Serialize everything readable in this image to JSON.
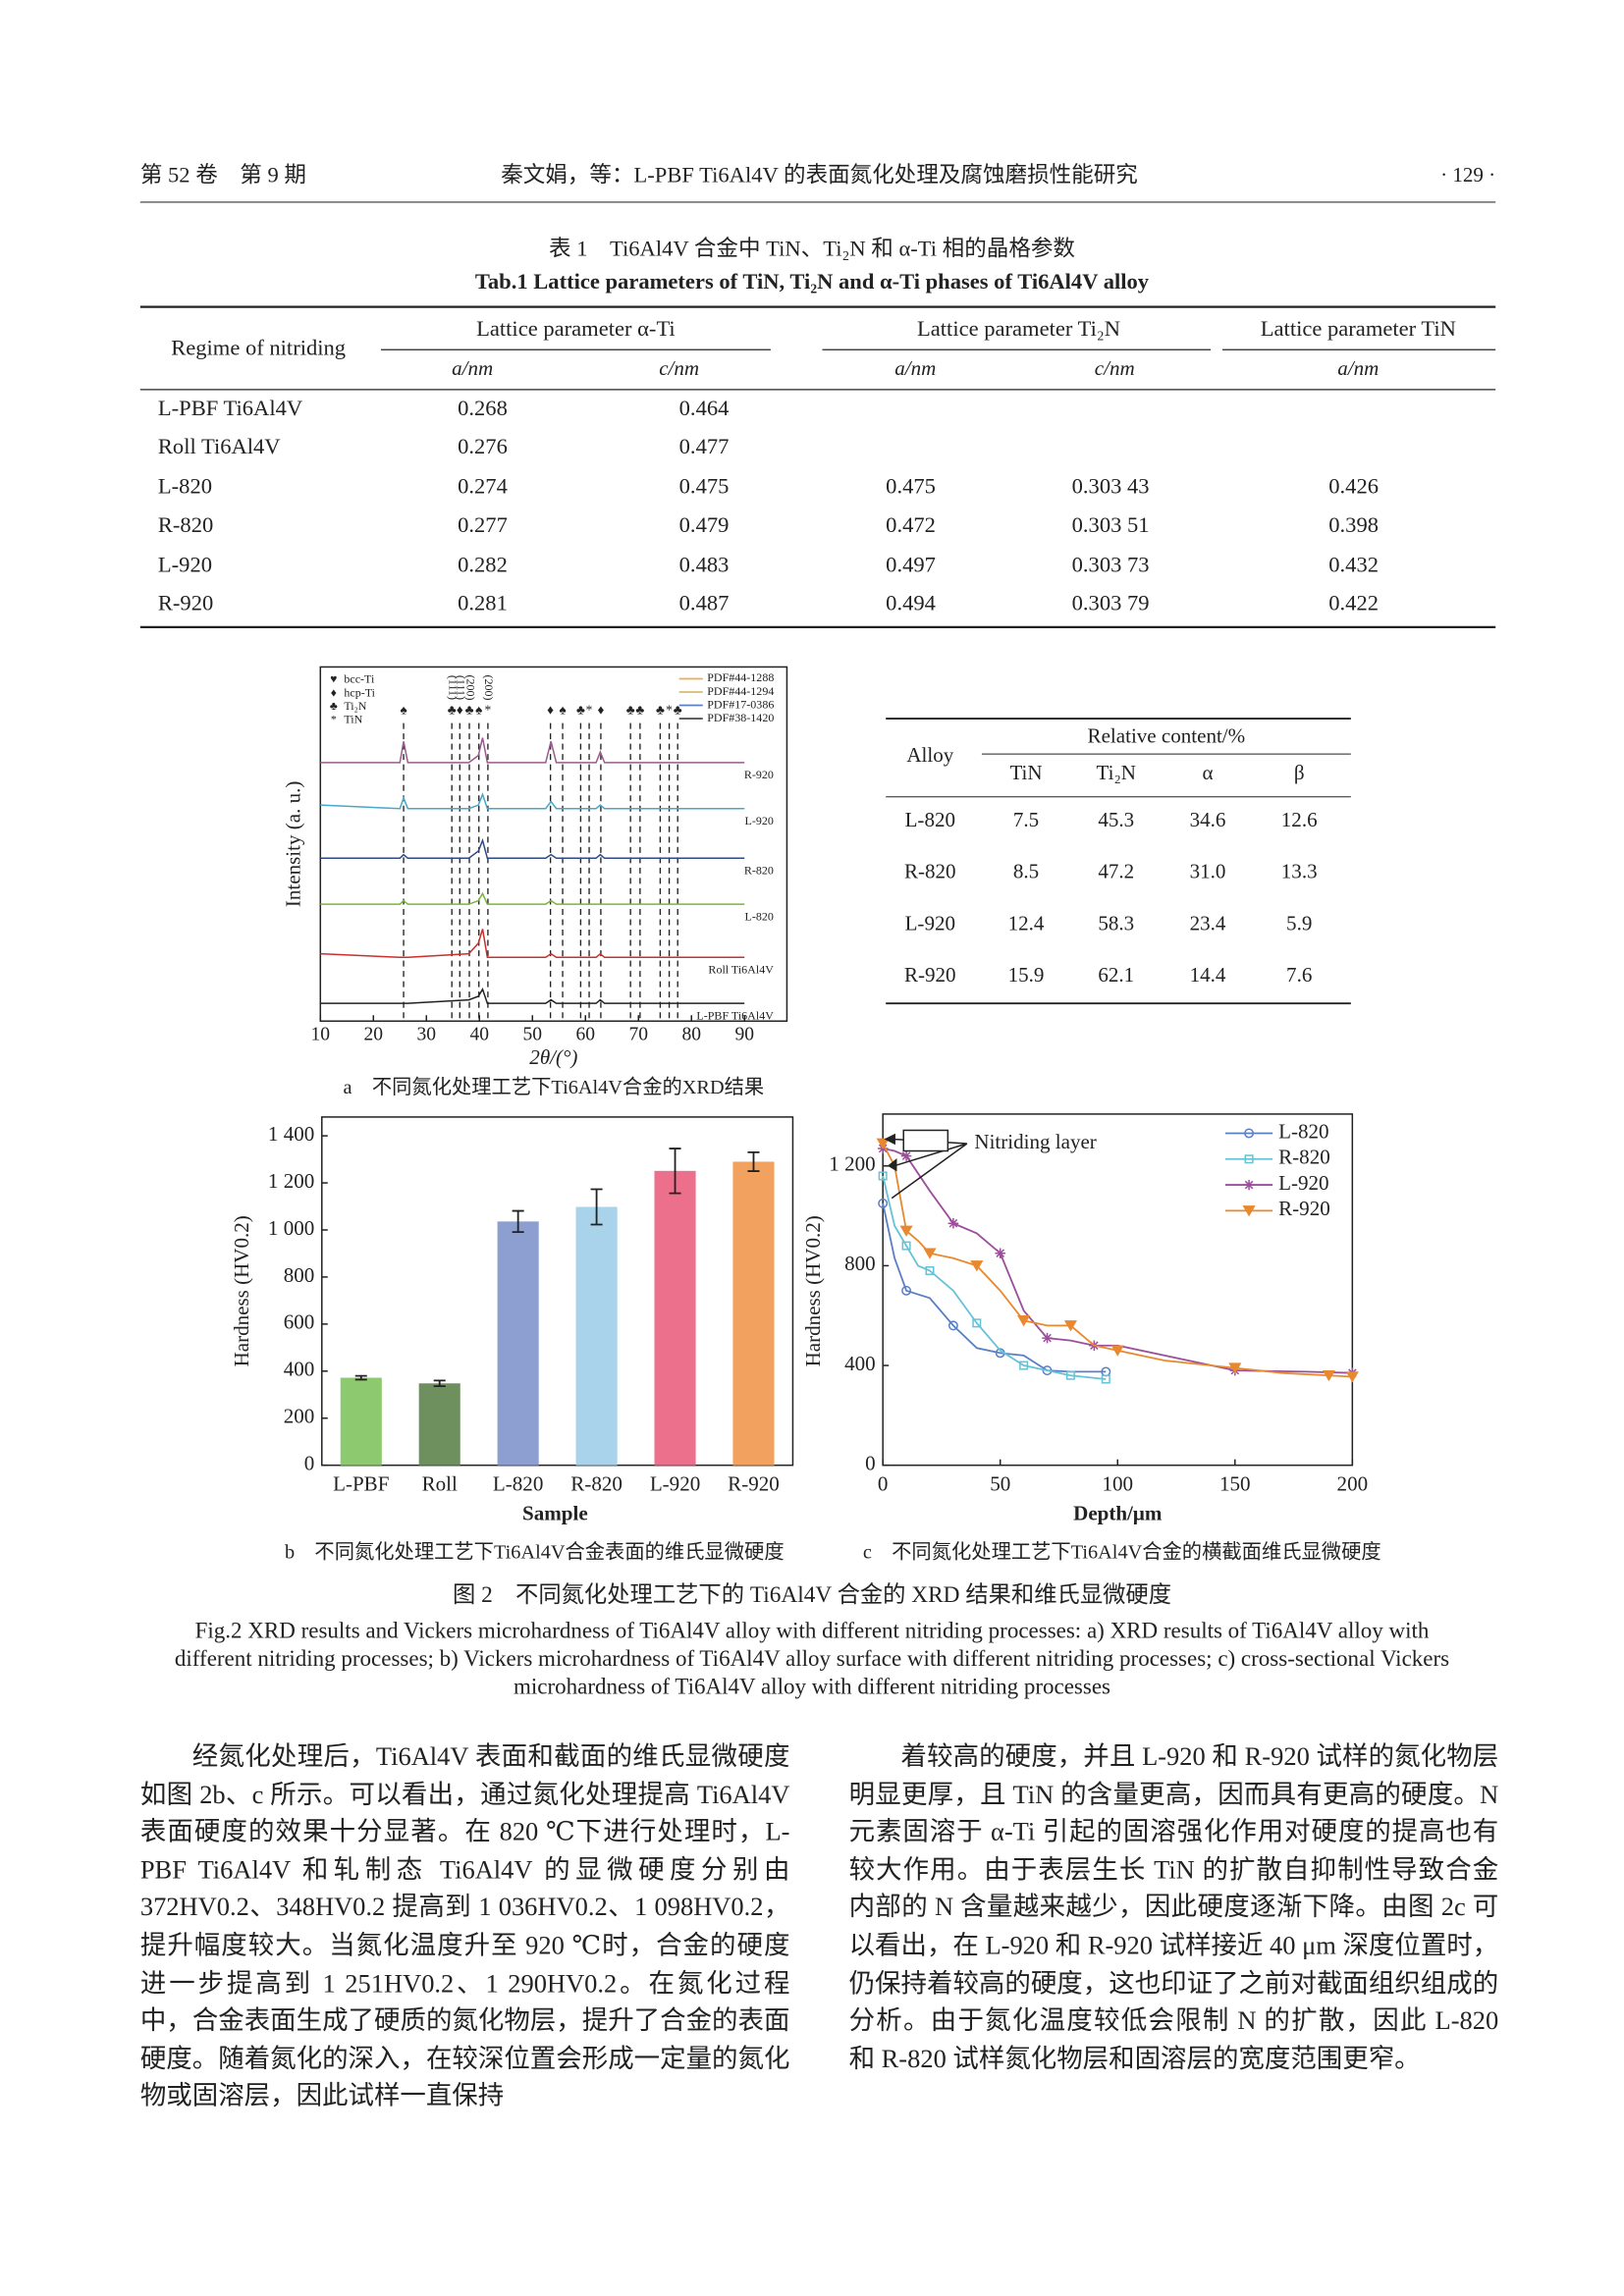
{
  "header": {
    "volume": "第 52 卷　第 9 期",
    "title": "秦文娟，等：L-PBF Ti6Al4V 的表面氮化处理及腐蚀磨损性能研究",
    "page": "· 129 ·"
  },
  "table1": {
    "caption_cn": "表 1　Ti6Al4V 合金中 TiN、Ti₂N 和 α-Ti 相的晶格参数",
    "caption_en": "Tab.1 Lattice parameters of TiN, Ti₂N and α-Ti phases of Ti6Al4V alloy",
    "regime": "Regime of nitriding",
    "groups": [
      "Lattice parameter α-Ti",
      "Lattice parameter Ti₂N",
      "Lattice parameter TiN"
    ],
    "sub": [
      "a/nm",
      "c/nm",
      "a/nm",
      "c/nm",
      "a/nm"
    ],
    "rows": [
      [
        "L-PBF Ti6Al4V",
        "0.268",
        "0.464",
        null,
        null,
        null
      ],
      [
        "Roll Ti6Al4V",
        "0.276",
        "0.477",
        null,
        null,
        null
      ],
      [
        "L-820",
        "0.274",
        "0.475",
        "0.475",
        "0.303 43",
        "0.426"
      ],
      [
        "R-820",
        "0.277",
        "0.479",
        "0.472",
        "0.303 51",
        "0.398"
      ],
      [
        "L-920",
        "0.282",
        "0.483",
        "0.497",
        "0.303 73",
        "0.432"
      ],
      [
        "R-920",
        "0.281",
        "0.487",
        "0.494",
        "0.303 79",
        "0.422"
      ]
    ]
  },
  "table2": {
    "alloy": "Alloy",
    "group": "Relative content/%",
    "columns": [
      "TiN",
      "Ti₂N",
      "α",
      "β"
    ],
    "rows": [
      [
        "L-820",
        "7.5",
        "45.3",
        "34.6",
        "12.6"
      ],
      [
        "R-820",
        "8.5",
        "47.2",
        "31.0",
        "13.3"
      ],
      [
        "L-920",
        "12.4",
        "58.3",
        "23.4",
        "5.9"
      ],
      [
        "R-920",
        "15.9",
        "62.1",
        "14.4",
        "7.6"
      ]
    ]
  },
  "chart_data": [
    {
      "type": "xrd",
      "caption": "a　不同氮化处理工艺下Ti6Al4V合金的XRD结果",
      "xlabel": "2θ/(°)",
      "ylabel": "Intensity (a. u.)",
      "xlim": [
        10,
        98
      ],
      "xticks": [
        10,
        20,
        30,
        40,
        50,
        60,
        70,
        80,
        90
      ],
      "ylim": [
        0,
        10
      ],
      "phases": [
        {
          "symbol": "♥",
          "name": "bcc-Ti"
        },
        {
          "symbol": "♦",
          "name": "hcp-Ti"
        },
        {
          "symbol": "♣",
          "name": "Ti₂N"
        },
        {
          "symbol": "*",
          "name": "TiN"
        }
      ],
      "references": [
        {
          "name": "PDF#44-1288",
          "color": "#f3a94f"
        },
        {
          "name": "PDF#44-1294",
          "color": "#d9b77a"
        },
        {
          "name": "PDF#17-0386",
          "color": "#5b7fc4"
        },
        {
          "name": "PDF#38-1420",
          "color": "#555555"
        }
      ],
      "peaks": [
        {
          "x": 25.7,
          "symbol": "♠"
        },
        {
          "x": 34.8,
          "symbol": "♣",
          "label": "(111)"
        },
        {
          "x": 36.3,
          "symbol": "♦",
          "label": "(111)"
        },
        {
          "x": 38.1,
          "symbol": "♣",
          "label": "(200)"
        },
        {
          "x": 39.9,
          "symbol": "♠"
        },
        {
          "x": 41.6,
          "symbol": "*",
          "label": "(200)"
        },
        {
          "x": 53.4,
          "symbol": "♦"
        },
        {
          "x": 55.7,
          "symbol": "♠"
        },
        {
          "x": 59.1,
          "symbol": "♣"
        },
        {
          "x": 60.7,
          "symbol": "*"
        },
        {
          "x": 62.9,
          "symbol": "♦"
        },
        {
          "x": 68.5,
          "symbol": "♣"
        },
        {
          "x": 70.3,
          "symbol": "♣"
        },
        {
          "x": 74.1,
          "symbol": "♣"
        },
        {
          "x": 75.8,
          "symbol": "*"
        },
        {
          "x": 77.4,
          "symbol": "♣"
        }
      ],
      "x": [
        10,
        25,
        25.7,
        26.5,
        38,
        39.8,
        40.6,
        41.5,
        52.5,
        53.5,
        54.5,
        62,
        62.8,
        63.6,
        75,
        90
      ],
      "series": [
        {
          "name": "R-920",
          "color": "#9b5b8c",
          "values": [
            7.3,
            7.3,
            7.9,
            7.3,
            7.3,
            7.5,
            8.0,
            7.3,
            7.3,
            7.9,
            7.3,
            7.3,
            7.6,
            7.3,
            7.3,
            7.3
          ]
        },
        {
          "name": "L-920",
          "color": "#49a7c9",
          "values": [
            6.1,
            6.0,
            6.3,
            6.0,
            6.0,
            6.1,
            6.4,
            6.0,
            6.0,
            6.2,
            6.0,
            6.0,
            6.1,
            6.0,
            6.0,
            6.0
          ]
        },
        {
          "name": "R-820",
          "color": "#2e4a8a",
          "values": [
            4.6,
            4.6,
            4.7,
            4.6,
            4.6,
            4.8,
            5.1,
            4.6,
            4.6,
            4.7,
            4.6,
            4.6,
            4.7,
            4.6,
            4.6,
            4.6
          ]
        },
        {
          "name": "L-820",
          "color": "#7ab43a",
          "values": [
            3.3,
            3.3,
            3.4,
            3.3,
            3.3,
            3.4,
            3.6,
            3.3,
            3.3,
            3.4,
            3.3,
            3.3,
            3.3,
            3.3,
            3.3,
            3.3
          ]
        },
        {
          "name": "Roll Ti6Al4V",
          "color": "#c9302c",
          "values": [
            1.9,
            1.8,
            1.8,
            1.8,
            1.9,
            2.2,
            2.6,
            1.8,
            1.8,
            1.9,
            1.8,
            1.8,
            1.9,
            1.8,
            1.8,
            1.8
          ]
        },
        {
          "name": "L-PBF Ti6Al4V",
          "color": "#222222",
          "values": [
            0.5,
            0.5,
            0.5,
            0.5,
            0.6,
            0.7,
            0.9,
            0.5,
            0.5,
            0.6,
            0.5,
            0.5,
            0.6,
            0.5,
            0.5,
            0.5
          ]
        }
      ]
    },
    {
      "type": "bar",
      "caption": "b　不同氮化处理工艺下Ti6Al4V合金表面的维氏显微硬度",
      "xlabel": "Sample",
      "ylabel": "Hardness (HV0.2)",
      "categories": [
        "L-PBF",
        "Roll",
        "L-820",
        "R-820",
        "L-920",
        "R-920"
      ],
      "values": [
        372,
        348,
        1036,
        1098,
        1251,
        1290
      ],
      "errors": [
        8,
        12,
        45,
        75,
        95,
        40
      ],
      "colors": [
        "#8dc96e",
        "#6e8f5e",
        "#8c9fd0",
        "#a8d3ea",
        "#ec6f8c",
        "#f2a15e"
      ],
      "ylim": [
        0,
        1480
      ],
      "yticks": [
        0,
        200,
        400,
        600,
        800,
        {
          "value": 1000,
          "label": "1 000"
        },
        {
          "value": 1200,
          "label": "1 200"
        },
        {
          "value": 1400,
          "label": "1 400"
        }
      ]
    },
    {
      "type": "line",
      "caption": "c　不同氮化处理工艺下Ti6Al4V合金的横截面维氏显微硬度",
      "xlabel": "Depth/μm",
      "ylabel": "Hardness (HV0.2)",
      "annotation": "Nitriding layer",
      "xlim": [
        0,
        200
      ],
      "xticks": [
        0,
        50,
        100,
        150,
        200
      ],
      "ylim": [
        0,
        1408
      ],
      "yticks": [
        0,
        400,
        800,
        {
          "value": 1200,
          "label": "1 200"
        }
      ],
      "series": [
        {
          "name": "L-820",
          "color": "#5b7fc4",
          "marker": "circle",
          "x": [
            0,
            5,
            10,
            20,
            30,
            40,
            50,
            60,
            70,
            80,
            95
          ],
          "values": [
            1050,
            830,
            700,
            670,
            560,
            470,
            450,
            440,
            380,
            375,
            375
          ]
        },
        {
          "name": "R-820",
          "color": "#66c2d6",
          "marker": "square",
          "x": [
            0,
            5,
            10,
            15,
            20,
            30,
            40,
            50,
            60,
            70,
            80,
            90,
            95
          ],
          "values": [
            1160,
            960,
            880,
            800,
            780,
            700,
            570,
            460,
            400,
            380,
            360,
            350,
            345
          ]
        },
        {
          "name": "L-920",
          "color": "#9b4f9b",
          "marker": "star",
          "x": [
            0,
            5,
            10,
            20,
            30,
            40,
            50,
            60,
            70,
            80,
            90,
            100,
            150,
            180,
            200
          ],
          "values": [
            1270,
            1260,
            1240,
            1100,
            970,
            930,
            850,
            620,
            510,
            500,
            480,
            480,
            380,
            375,
            370
          ]
        },
        {
          "name": "R-920",
          "color": "#e8892f",
          "marker": "triangle",
          "x": [
            0,
            5,
            10,
            15,
            20,
            30,
            40,
            50,
            60,
            70,
            80,
            90,
            100,
            120,
            150,
            170,
            190,
            200
          ],
          "values": [
            1290,
            1200,
            940,
            900,
            850,
            830,
            800,
            700,
            580,
            560,
            560,
            480,
            460,
            420,
            390,
            370,
            360,
            355
          ]
        }
      ]
    }
  ],
  "figure2": {
    "caption_cn": "图 2　不同氮化处理工艺下的 Ti6Al4V 合金的 XRD 结果和维氏显微硬度",
    "caption_en": "Fig.2 XRD results and Vickers microhardness of Ti6Al4V alloy with different nitriding processes: a) XRD results of Ti6Al4V alloy with different nitriding processes; b) Vickers microhardness of Ti6Al4V alloy surface with different nitriding processes; c) cross-sectional Vickers microhardness of Ti6Al4V alloy with different nitriding processes"
  },
  "body": {
    "left": "经氮化处理后，Ti6Al4V 表面和截面的维氏显微硬度如图 2b、c 所示。可以看出，通过氮化处理提高 Ti6Al4V 表面硬度的效果十分显著。在 820 ℃下进行处理时，L-PBF Ti6Al4V 和轧制态 Ti6Al4V 的显微硬度分别由 372HV0.2、348HV0.2 提高到 1 036HV0.2、1 098HV0.2，提升幅度较大。当氮化温度升至 920 ℃时，合金的硬度进一步提高到 1 251HV0.2、1 290HV0.2。在氮化过程中，合金表面生成了硬质的氮化物层，提升了合金的表面硬度。随着氮化的深入，在较深位置会形成一定量的氮化物或固溶层，因此试样一直保持",
    "right": "着较高的硬度，并且 L-920 和 R-920 试样的氮化物层明显更厚，且 TiN 的含量更高，因而具有更高的硬度。N 元素固溶于 α-Ti 引起的固溶强化作用对硬度的提高也有较大作用。由于表层生长 TiN 的扩散自抑制性导致合金内部的 N 含量越来越少，因此硬度逐渐下降。由图 2c 可以看出，在 L-920 和 R-920 试样接近 40 μm 深度位置时，仍保持着较高的硬度，这也印证了之前对截面组织组成的分析。由于氮化温度较低会限制 N 的扩散，因此 L-820 和 R-820 试样氮化物层和固溶层的宽度范围更窄。"
  }
}
